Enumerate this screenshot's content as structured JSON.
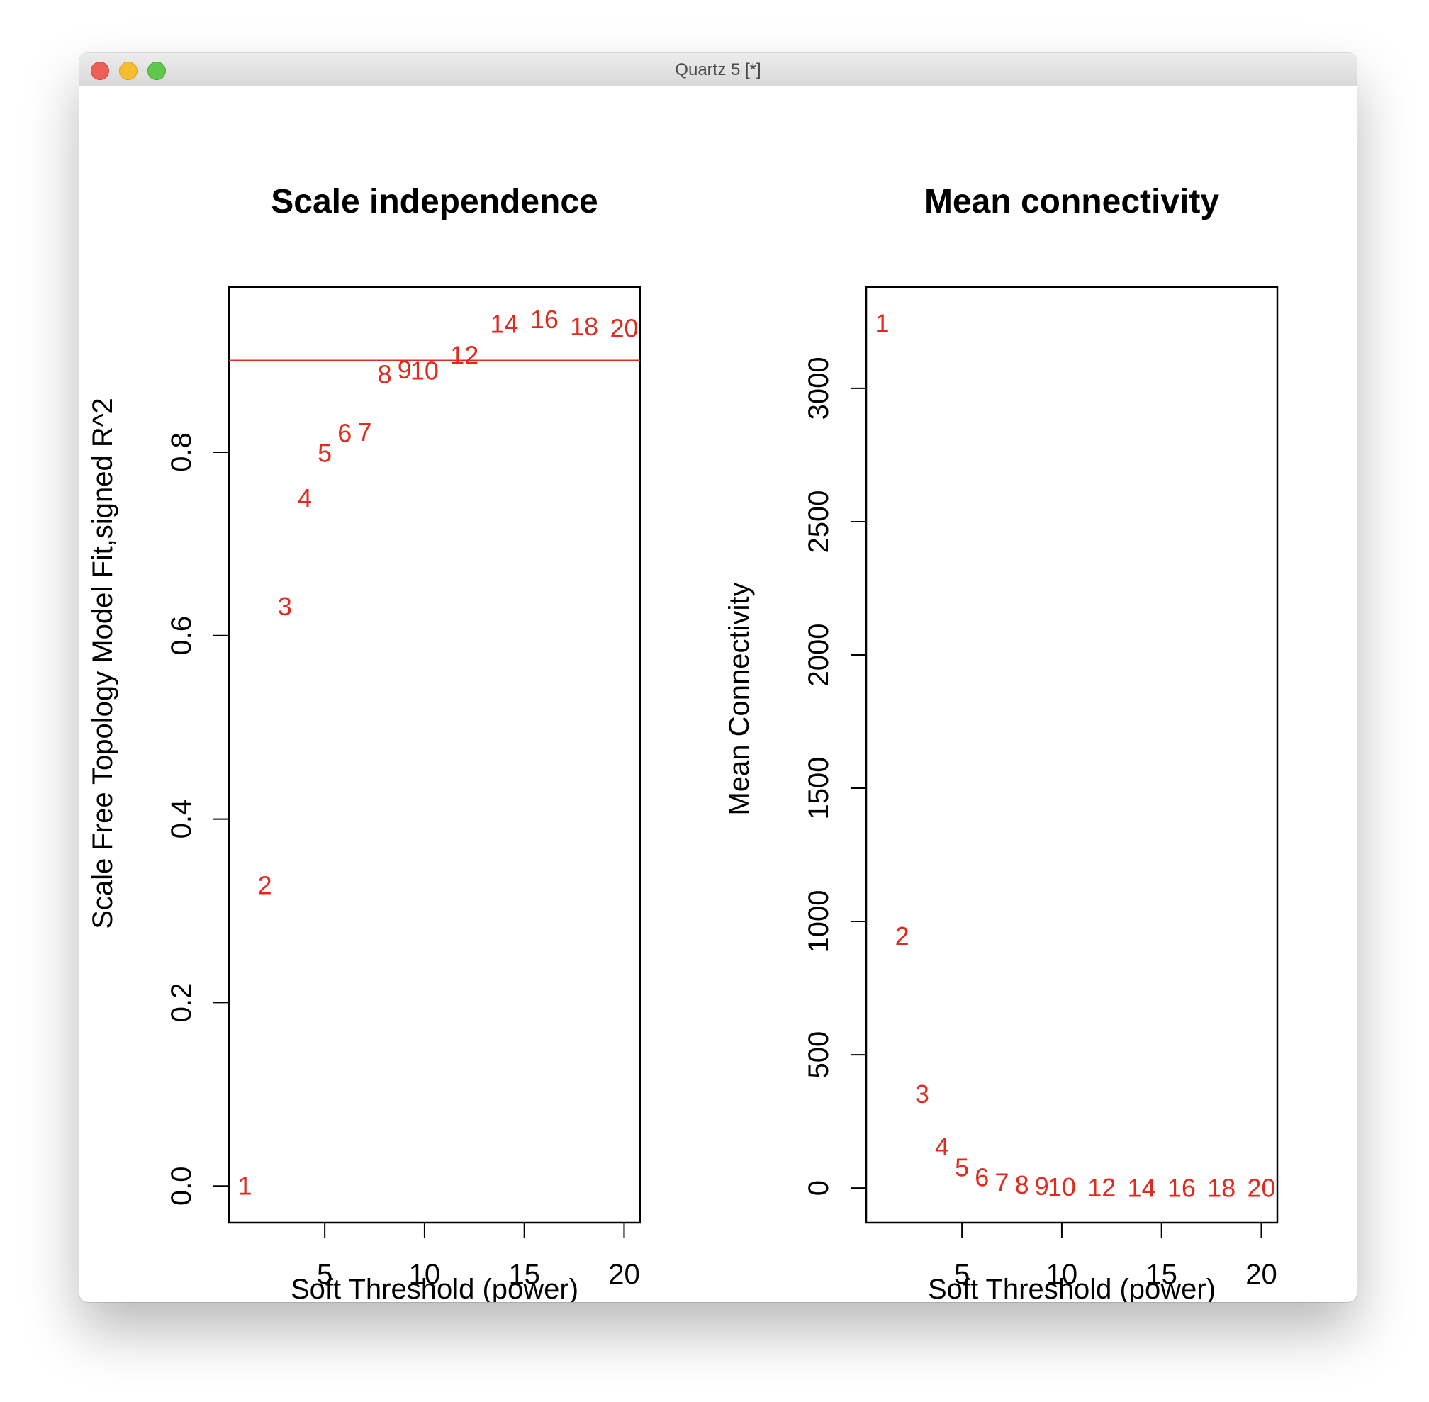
{
  "window": {
    "title": "Quartz 5 [*]"
  },
  "colors": {
    "points": "#e02a1e",
    "axes": "#000000",
    "threshold_line": "#e02a1e"
  },
  "chart_data": [
    {
      "type": "scatter",
      "title": "Scale independence",
      "xlabel": "Soft Threshold (power)",
      "ylabel": "Scale Free Topology Model Fit,signed R^2",
      "xlim": [
        0.2,
        20.8
      ],
      "ylim": [
        -0.04,
        0.98
      ],
      "xticks": [
        "5",
        "10",
        "15",
        "20"
      ],
      "xtick_values": [
        5,
        10,
        15,
        20
      ],
      "yticks": [
        "0.0",
        "0.2",
        "0.4",
        "0.6",
        "0.8"
      ],
      "ytick_values": [
        0.0,
        0.2,
        0.4,
        0.6,
        0.8
      ],
      "hline": 0.9,
      "points": [
        {
          "x": 1,
          "y": 0.0,
          "label": "1"
        },
        {
          "x": 2,
          "y": 0.328,
          "label": "2"
        },
        {
          "x": 3,
          "y": 0.632,
          "label": "3"
        },
        {
          "x": 4,
          "y": 0.75,
          "label": "4"
        },
        {
          "x": 5,
          "y": 0.799,
          "label": "5"
        },
        {
          "x": 6,
          "y": 0.821,
          "label": "6"
        },
        {
          "x": 7,
          "y": 0.822,
          "label": "7"
        },
        {
          "x": 8,
          "y": 0.885,
          "label": "8"
        },
        {
          "x": 9,
          "y": 0.89,
          "label": "9"
        },
        {
          "x": 10,
          "y": 0.889,
          "label": "10"
        },
        {
          "x": 12,
          "y": 0.906,
          "label": "12"
        },
        {
          "x": 14,
          "y": 0.94,
          "label": "14"
        },
        {
          "x": 16,
          "y": 0.945,
          "label": "16"
        },
        {
          "x": 18,
          "y": 0.937,
          "label": "18"
        },
        {
          "x": 20,
          "y": 0.935,
          "label": "20"
        }
      ]
    },
    {
      "type": "scatter",
      "title": "Mean connectivity",
      "xlabel": "Soft Threshold (power)",
      "ylabel": "Mean Connectivity",
      "xlim": [
        0.2,
        20.8
      ],
      "ylim": [
        -130,
        3380
      ],
      "xticks": [
        "5",
        "10",
        "15",
        "20"
      ],
      "xtick_values": [
        5,
        10,
        15,
        20
      ],
      "yticks": [
        "0",
        "500",
        "1000",
        "1500",
        "2000",
        "2500",
        "3000"
      ],
      "ytick_values": [
        0,
        500,
        1000,
        1500,
        2000,
        2500,
        3000
      ],
      "points": [
        {
          "x": 1,
          "y": 3245,
          "label": "1"
        },
        {
          "x": 2,
          "y": 945,
          "label": "2"
        },
        {
          "x": 3,
          "y": 353,
          "label": "3"
        },
        {
          "x": 4,
          "y": 156,
          "label": "4"
        },
        {
          "x": 5,
          "y": 77,
          "label": "5"
        },
        {
          "x": 6,
          "y": 40,
          "label": "6"
        },
        {
          "x": 7,
          "y": 22,
          "label": "7"
        },
        {
          "x": 8,
          "y": 12,
          "label": "8"
        },
        {
          "x": 9,
          "y": 7,
          "label": "9"
        },
        {
          "x": 10,
          "y": 4,
          "label": "10"
        },
        {
          "x": 12,
          "y": 1.5,
          "label": "12"
        },
        {
          "x": 14,
          "y": 0.6,
          "label": "14"
        },
        {
          "x": 16,
          "y": 0.3,
          "label": "16"
        },
        {
          "x": 18,
          "y": 0.1,
          "label": "18"
        },
        {
          "x": 20,
          "y": 0.05,
          "label": "20"
        }
      ]
    }
  ]
}
